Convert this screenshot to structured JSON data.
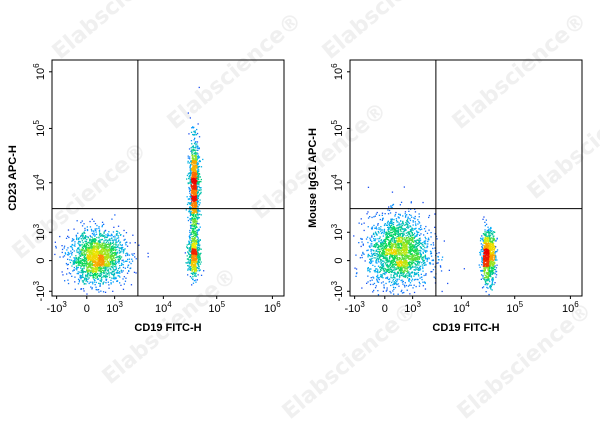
{
  "watermark": "Elabscience®",
  "chart_data": [
    {
      "type": "scatter",
      "xlabel": "CD19 FITC-H",
      "ylabel": "CD23 APC-H",
      "x_ticks": [
        {
          "b": "-10",
          "e": "3"
        },
        {
          "b": "0",
          "e": ""
        },
        {
          "b": "10",
          "e": "3"
        },
        {
          "b": "10",
          "e": "4"
        },
        {
          "b": "10",
          "e": "5"
        },
        {
          "b": "10",
          "e": "6"
        }
      ],
      "y_ticks": [
        {
          "b": "-10",
          "e": "3"
        },
        {
          "b": "0",
          "e": ""
        },
        {
          "b": "10",
          "e": "3"
        },
        {
          "b": "10",
          "e": "4"
        },
        {
          "b": "10",
          "e": "5"
        },
        {
          "b": "10",
          "e": "6"
        }
      ],
      "gate": {
        "x": 3000,
        "y": 3000
      },
      "populations": [
        {
          "name": "CD19- CD23-",
          "x_center": 400,
          "y_center": 100,
          "x_spread": 0.55,
          "y_spread": 0.5,
          "points": 1700
        },
        {
          "name": "CD19+ CD23+",
          "x_center": 38000,
          "y_center": 8000,
          "x_spread": 0.1,
          "y_spread": 0.9,
          "points": 1000
        },
        {
          "name": "CD19+ CD23-",
          "x_center": 38000,
          "y_center": 200,
          "x_spread": 0.12,
          "y_spread": 0.45,
          "points": 500
        }
      ]
    },
    {
      "type": "scatter",
      "xlabel": "CD19 FITC-H",
      "ylabel": "Mouse IgG1 APC-H",
      "x_ticks": [
        {
          "b": "-10",
          "e": "3"
        },
        {
          "b": "0",
          "e": ""
        },
        {
          "b": "10",
          "e": "3"
        },
        {
          "b": "10",
          "e": "4"
        },
        {
          "b": "10",
          "e": "5"
        },
        {
          "b": "10",
          "e": "6"
        }
      ],
      "y_ticks": [
        {
          "b": "-10",
          "e": "3"
        },
        {
          "b": "0",
          "e": ""
        },
        {
          "b": "10",
          "e": "3"
        },
        {
          "b": "10",
          "e": "4"
        },
        {
          "b": "10",
          "e": "5"
        },
        {
          "b": "10",
          "e": "6"
        }
      ],
      "gate": {
        "x": 3000,
        "y": 3000
      },
      "populations": [
        {
          "name": "CD19- IgG1-",
          "x_center": 500,
          "y_center": 300,
          "x_spread": 0.6,
          "y_spread": 0.7,
          "points": 2000
        },
        {
          "name": "CD19+ IgG1-",
          "x_center": 32000,
          "y_center": 150,
          "x_spread": 0.14,
          "y_spread": 0.5,
          "points": 800
        }
      ]
    }
  ]
}
